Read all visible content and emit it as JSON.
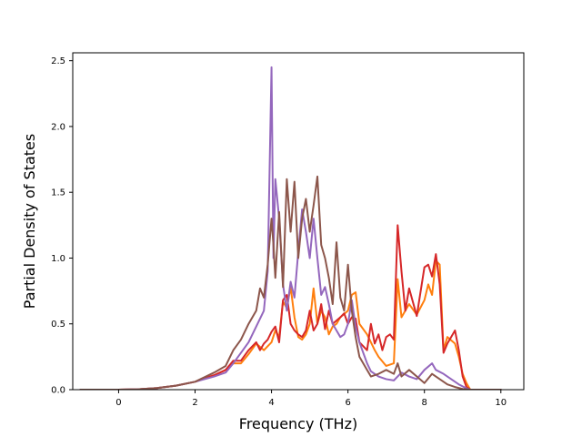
{
  "chart_data": {
    "type": "line",
    "title": "",
    "xlabel": "Frequency (THz)",
    "ylabel": "Partial Density of States",
    "xlim": [
      -1.2,
      10.6
    ],
    "ylim": [
      0,
      2.56
    ],
    "xticks": [
      0,
      2,
      4,
      6,
      8,
      10
    ],
    "yticks": [
      0.0,
      0.5,
      1.0,
      1.5,
      2.0,
      2.5
    ],
    "xtick_labels": [
      "0",
      "2",
      "4",
      "6",
      "8",
      "10"
    ],
    "ytick_labels": [
      "0.0",
      "0.5",
      "1.0",
      "1.5",
      "2.0",
      "2.5"
    ],
    "grid": false,
    "legend": "none",
    "series": [
      {
        "color": "#ff7f0e",
        "points": [
          [
            -1.0,
            0
          ],
          [
            0,
            0
          ],
          [
            0.5,
            0.003
          ],
          [
            1.0,
            0.012
          ],
          [
            1.5,
            0.03
          ],
          [
            2.0,
            0.06
          ],
          [
            2.5,
            0.11
          ],
          [
            2.8,
            0.15
          ],
          [
            3.0,
            0.2
          ],
          [
            3.2,
            0.2
          ],
          [
            3.4,
            0.27
          ],
          [
            3.6,
            0.35
          ],
          [
            3.8,
            0.3
          ],
          [
            4.0,
            0.36
          ],
          [
            4.1,
            0.45
          ],
          [
            4.2,
            0.4
          ],
          [
            4.3,
            0.67
          ],
          [
            4.4,
            0.62
          ],
          [
            4.5,
            0.78
          ],
          [
            4.6,
            0.55
          ],
          [
            4.7,
            0.4
          ],
          [
            4.8,
            0.38
          ],
          [
            4.9,
            0.42
          ],
          [
            5.0,
            0.5
          ],
          [
            5.1,
            0.77
          ],
          [
            5.2,
            0.5
          ],
          [
            5.3,
            0.6
          ],
          [
            5.4,
            0.55
          ],
          [
            5.5,
            0.42
          ],
          [
            5.6,
            0.48
          ],
          [
            5.7,
            0.5
          ],
          [
            5.8,
            0.55
          ],
          [
            6.0,
            0.6
          ],
          [
            6.1,
            0.72
          ],
          [
            6.2,
            0.74
          ],
          [
            6.3,
            0.5
          ],
          [
            6.5,
            0.42
          ],
          [
            6.7,
            0.3
          ],
          [
            6.8,
            0.25
          ],
          [
            7.0,
            0.18
          ],
          [
            7.2,
            0.2
          ],
          [
            7.3,
            0.84
          ],
          [
            7.4,
            0.55
          ],
          [
            7.5,
            0.6
          ],
          [
            7.6,
            0.65
          ],
          [
            7.8,
            0.57
          ],
          [
            8.0,
            0.68
          ],
          [
            8.1,
            0.8
          ],
          [
            8.2,
            0.72
          ],
          [
            8.3,
            0.98
          ],
          [
            8.4,
            0.95
          ],
          [
            8.5,
            0.3
          ],
          [
            8.6,
            0.4
          ],
          [
            8.8,
            0.35
          ],
          [
            8.9,
            0.25
          ],
          [
            9.0,
            0.12
          ],
          [
            9.1,
            0.05
          ],
          [
            9.2,
            0
          ],
          [
            10.0,
            0
          ]
        ]
      },
      {
        "color": "#d62728",
        "points": [
          [
            -1.0,
            0
          ],
          [
            0,
            0
          ],
          [
            0.5,
            0.003
          ],
          [
            1.0,
            0.012
          ],
          [
            1.5,
            0.03
          ],
          [
            2.0,
            0.06
          ],
          [
            2.5,
            0.11
          ],
          [
            2.8,
            0.15
          ],
          [
            3.0,
            0.22
          ],
          [
            3.2,
            0.22
          ],
          [
            3.4,
            0.3
          ],
          [
            3.6,
            0.36
          ],
          [
            3.7,
            0.3
          ],
          [
            3.8,
            0.35
          ],
          [
            3.9,
            0.38
          ],
          [
            4.0,
            0.44
          ],
          [
            4.1,
            0.48
          ],
          [
            4.2,
            0.36
          ],
          [
            4.3,
            0.68
          ],
          [
            4.4,
            0.72
          ],
          [
            4.5,
            0.5
          ],
          [
            4.6,
            0.45
          ],
          [
            4.7,
            0.42
          ],
          [
            4.8,
            0.4
          ],
          [
            4.9,
            0.45
          ],
          [
            5.0,
            0.6
          ],
          [
            5.1,
            0.45
          ],
          [
            5.2,
            0.5
          ],
          [
            5.3,
            0.65
          ],
          [
            5.4,
            0.46
          ],
          [
            5.5,
            0.6
          ],
          [
            5.6,
            0.5
          ],
          [
            5.8,
            0.55
          ],
          [
            5.9,
            0.58
          ],
          [
            6.0,
            0.5
          ],
          [
            6.1,
            0.55
          ],
          [
            6.2,
            0.54
          ],
          [
            6.3,
            0.36
          ],
          [
            6.5,
            0.3
          ],
          [
            6.6,
            0.5
          ],
          [
            6.7,
            0.35
          ],
          [
            6.8,
            0.42
          ],
          [
            6.9,
            0.3
          ],
          [
            7.0,
            0.4
          ],
          [
            7.1,
            0.42
          ],
          [
            7.2,
            0.38
          ],
          [
            7.3,
            1.25
          ],
          [
            7.4,
            0.9
          ],
          [
            7.5,
            0.6
          ],
          [
            7.6,
            0.77
          ],
          [
            7.8,
            0.56
          ],
          [
            8.0,
            0.93
          ],
          [
            8.1,
            0.95
          ],
          [
            8.2,
            0.86
          ],
          [
            8.3,
            1.03
          ],
          [
            8.4,
            0.8
          ],
          [
            8.5,
            0.28
          ],
          [
            8.6,
            0.35
          ],
          [
            8.8,
            0.45
          ],
          [
            8.9,
            0.3
          ],
          [
            9.0,
            0.1
          ],
          [
            9.1,
            0.02
          ],
          [
            9.2,
            0
          ],
          [
            10.0,
            0
          ]
        ]
      },
      {
        "color": "#9467bd",
        "points": [
          [
            -1.0,
            0
          ],
          [
            0,
            0
          ],
          [
            0.5,
            0.003
          ],
          [
            1.0,
            0.012
          ],
          [
            1.5,
            0.03
          ],
          [
            2.0,
            0.06
          ],
          [
            2.5,
            0.1
          ],
          [
            2.8,
            0.13
          ],
          [
            3.0,
            0.2
          ],
          [
            3.2,
            0.28
          ],
          [
            3.4,
            0.36
          ],
          [
            3.6,
            0.48
          ],
          [
            3.8,
            0.6
          ],
          [
            3.9,
            0.9
          ],
          [
            4.0,
            2.45
          ],
          [
            4.05,
            1.0
          ],
          [
            4.1,
            1.6
          ],
          [
            4.2,
            1.3
          ],
          [
            4.3,
            0.8
          ],
          [
            4.4,
            0.6
          ],
          [
            4.5,
            0.82
          ],
          [
            4.6,
            0.7
          ],
          [
            4.7,
            1.05
          ],
          [
            4.8,
            1.37
          ],
          [
            4.9,
            1.2
          ],
          [
            5.0,
            1.0
          ],
          [
            5.1,
            1.3
          ],
          [
            5.2,
            1.0
          ],
          [
            5.3,
            0.72
          ],
          [
            5.4,
            0.78
          ],
          [
            5.5,
            0.65
          ],
          [
            5.6,
            0.5
          ],
          [
            5.7,
            0.45
          ],
          [
            5.8,
            0.4
          ],
          [
            5.9,
            0.42
          ],
          [
            6.0,
            0.5
          ],
          [
            6.1,
            0.68
          ],
          [
            6.2,
            0.48
          ],
          [
            6.3,
            0.36
          ],
          [
            6.5,
            0.2
          ],
          [
            6.6,
            0.14
          ],
          [
            6.8,
            0.1
          ],
          [
            7.0,
            0.08
          ],
          [
            7.2,
            0.07
          ],
          [
            7.4,
            0.13
          ],
          [
            7.6,
            0.1
          ],
          [
            7.8,
            0.08
          ],
          [
            8.0,
            0.15
          ],
          [
            8.2,
            0.2
          ],
          [
            8.3,
            0.15
          ],
          [
            8.5,
            0.12
          ],
          [
            8.7,
            0.08
          ],
          [
            8.9,
            0.04
          ],
          [
            9.1,
            0.01
          ],
          [
            9.2,
            0
          ],
          [
            10.0,
            0
          ]
        ]
      },
      {
        "color": "#8c564b",
        "points": [
          [
            -1.0,
            0
          ],
          [
            0,
            0
          ],
          [
            0.5,
            0.003
          ],
          [
            1.0,
            0.012
          ],
          [
            1.5,
            0.03
          ],
          [
            2.0,
            0.06
          ],
          [
            2.5,
            0.13
          ],
          [
            2.8,
            0.18
          ],
          [
            3.0,
            0.3
          ],
          [
            3.2,
            0.38
          ],
          [
            3.4,
            0.5
          ],
          [
            3.6,
            0.6
          ],
          [
            3.7,
            0.77
          ],
          [
            3.8,
            0.7
          ],
          [
            3.9,
            0.95
          ],
          [
            4.0,
            1.3
          ],
          [
            4.05,
            1.1
          ],
          [
            4.1,
            0.85
          ],
          [
            4.2,
            1.35
          ],
          [
            4.3,
            0.78
          ],
          [
            4.4,
            1.6
          ],
          [
            4.5,
            1.2
          ],
          [
            4.6,
            1.58
          ],
          [
            4.7,
            1.0
          ],
          [
            4.8,
            1.3
          ],
          [
            4.9,
            1.45
          ],
          [
            5.0,
            1.2
          ],
          [
            5.1,
            1.4
          ],
          [
            5.2,
            1.62
          ],
          [
            5.3,
            1.1
          ],
          [
            5.4,
            1.0
          ],
          [
            5.5,
            0.85
          ],
          [
            5.6,
            0.65
          ],
          [
            5.7,
            1.12
          ],
          [
            5.8,
            0.7
          ],
          [
            5.9,
            0.6
          ],
          [
            6.0,
            0.95
          ],
          [
            6.1,
            0.6
          ],
          [
            6.2,
            0.4
          ],
          [
            6.3,
            0.25
          ],
          [
            6.5,
            0.15
          ],
          [
            6.6,
            0.1
          ],
          [
            6.8,
            0.12
          ],
          [
            7.0,
            0.15
          ],
          [
            7.2,
            0.12
          ],
          [
            7.3,
            0.2
          ],
          [
            7.4,
            0.1
          ],
          [
            7.6,
            0.15
          ],
          [
            7.8,
            0.1
          ],
          [
            8.0,
            0.05
          ],
          [
            8.2,
            0.12
          ],
          [
            8.4,
            0.08
          ],
          [
            8.6,
            0.04
          ],
          [
            8.8,
            0.02
          ],
          [
            9.0,
            0.005
          ],
          [
            9.2,
            0
          ],
          [
            10.0,
            0
          ]
        ]
      }
    ]
  }
}
